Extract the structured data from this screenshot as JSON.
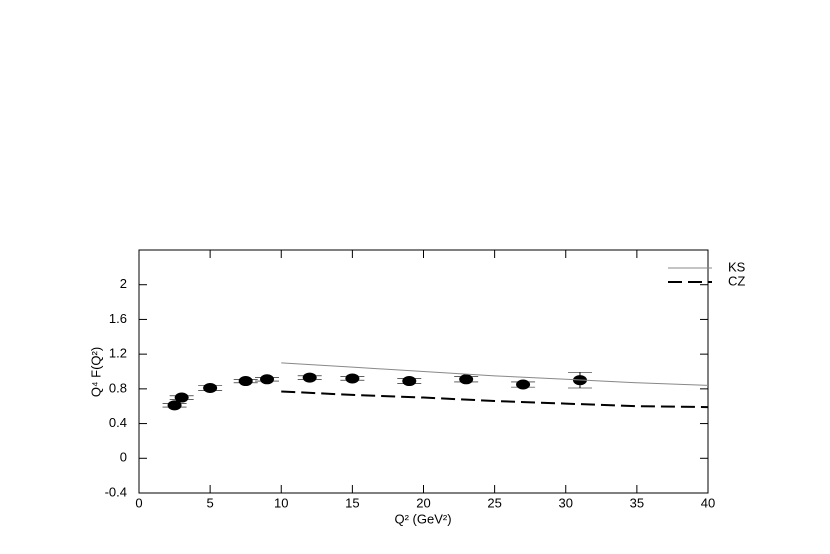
{
  "chart_data": {
    "type": "scatter",
    "x_label": "Q² (GeV²)",
    "y_label": "Q⁴ F(Q²)",
    "xlim": [
      0,
      40
    ],
    "xticks": [
      0,
      5,
      10,
      15,
      20,
      25,
      30,
      35,
      40
    ],
    "ylim": [
      -0.4,
      2.4
    ],
    "yticks": [
      -0.4,
      0.0,
      0.4,
      0.8,
      1.2,
      1.6,
      2.0
    ],
    "legend": "right",
    "series": [
      {
        "type": "scatter",
        "color": "#000000",
        "x": [
          2.5,
          3,
          5,
          7.5,
          9,
          12,
          15,
          19,
          23,
          27,
          31
        ],
        "values": [
          0.61,
          0.7,
          0.81,
          0.89,
          0.91,
          0.93,
          0.92,
          0.89,
          0.91,
          0.85,
          0.9
        ],
        "errors": [
          0.02,
          0.02,
          0.03,
          0.02,
          0.02,
          0.02,
          0.02,
          0.03,
          0.03,
          0.03,
          0.09
        ]
      },
      {
        "type": "line",
        "name": "KS",
        "color": "#888888",
        "dash": false,
        "x": [
          10,
          15,
          20,
          25,
          30,
          35,
          40
        ],
        "values": [
          1.1,
          1.05,
          1.0,
          0.95,
          0.91,
          0.87,
          0.84
        ]
      },
      {
        "type": "line",
        "name": "CZ",
        "color": "#000000",
        "dash": true,
        "x": [
          10,
          15,
          20,
          25,
          30,
          35,
          40
        ],
        "values": [
          0.77,
          0.73,
          0.7,
          0.66,
          0.63,
          0.6,
          0.59
        ]
      }
    ]
  }
}
